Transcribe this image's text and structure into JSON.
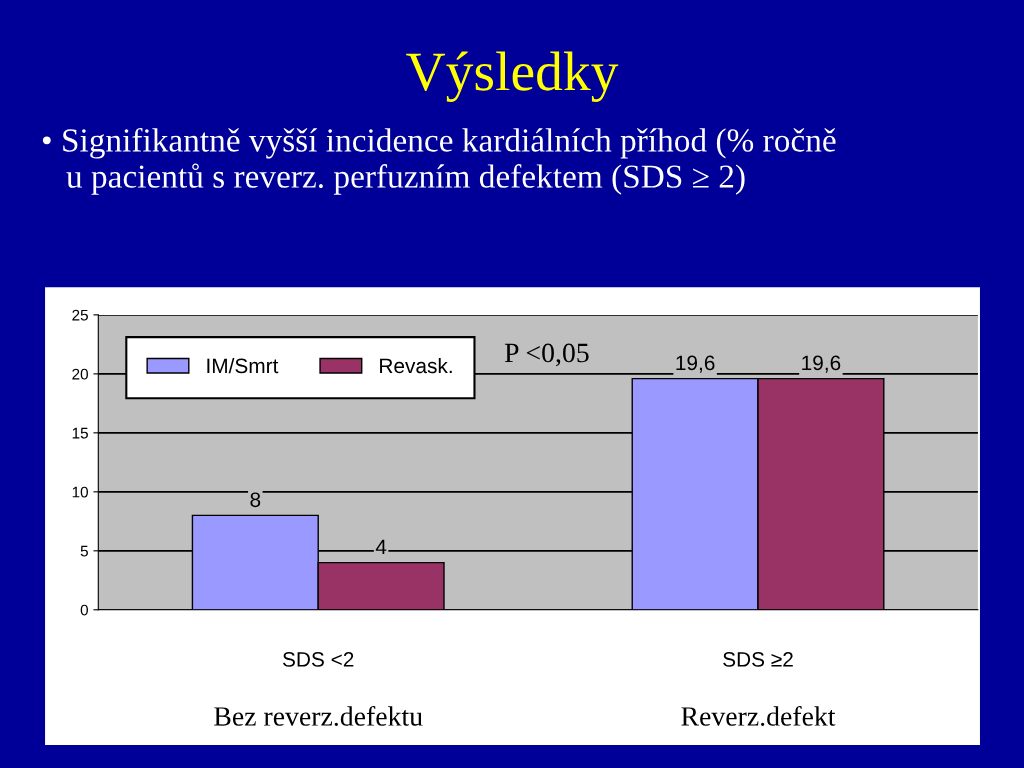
{
  "chart_data": {
    "type": "bar",
    "title": "Výsledky",
    "subtitle": "• Signifikantně vyšší incidence kardiálních příhod (% ročně\n   u pacientů s reverz. perfuzním defektem (SDS ≥ 2)",
    "categories": [
      "SDS <2",
      "SDS ≥2"
    ],
    "series": [
      {
        "name": "IM/Smrt",
        "color": "#9999ff",
        "values": [
          8,
          19.6
        ],
        "value_labels": [
          "8",
          "19,6"
        ]
      },
      {
        "name": "Revask.",
        "color": "#993366",
        "values": [
          4,
          19.6
        ],
        "value_labels": [
          "4",
          "19,6"
        ]
      }
    ],
    "ylim": [
      0,
      25
    ],
    "yticks": [
      0,
      5,
      10,
      15,
      20,
      25
    ],
    "grid": "y",
    "legend": "top left",
    "annotations": [
      "P <0,05",
      "Bez reverz.defektu",
      "Reverz.defekt"
    ]
  }
}
